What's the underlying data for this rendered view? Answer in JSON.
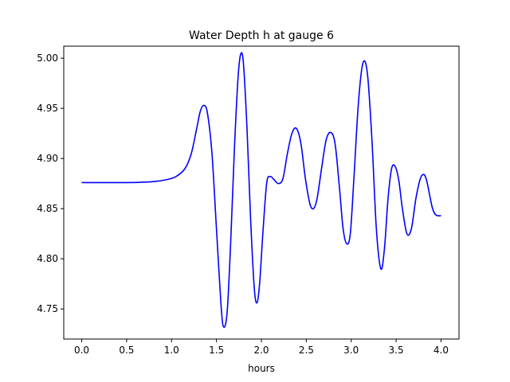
{
  "chart_data": {
    "type": "line",
    "title": "Water Depth h at gauge 6",
    "xlabel": "hours",
    "ylabel": "",
    "xlim": [
      -0.2,
      4.2
    ],
    "ylim": [
      4.72,
      5.012
    ],
    "xticks": [
      0.0,
      0.5,
      1.0,
      1.5,
      2.0,
      2.5,
      3.0,
      3.5,
      4.0
    ],
    "xtick_labels": [
      "0.0",
      "0.5",
      "1.0",
      "1.5",
      "2.0",
      "2.5",
      "3.0",
      "3.5",
      "4.0"
    ],
    "yticks": [
      4.75,
      4.8,
      4.85,
      4.9,
      4.95,
      5.0
    ],
    "ytick_labels": [
      "4.75",
      "4.80",
      "4.85",
      "4.90",
      "4.95",
      "5.00"
    ],
    "grid": false,
    "series": [
      {
        "color": "#0000ff",
        "x": [
          0.0,
          0.5,
          0.8,
          0.95,
          1.05,
          1.15,
          1.22,
          1.28,
          1.32,
          1.36,
          1.4,
          1.45,
          1.5,
          1.55,
          1.58,
          1.62,
          1.66,
          1.7,
          1.74,
          1.77,
          1.8,
          1.84,
          1.88,
          1.92,
          1.95,
          1.98,
          2.02,
          2.06,
          2.1,
          2.14,
          2.19,
          2.24,
          2.29,
          2.34,
          2.39,
          2.44,
          2.49,
          2.54,
          2.58,
          2.62,
          2.67,
          2.72,
          2.77,
          2.82,
          2.87,
          2.91,
          2.95,
          2.99,
          3.03,
          3.08,
          3.13,
          3.18,
          3.23,
          3.28,
          3.33,
          3.37,
          3.41,
          3.45,
          3.49,
          3.53,
          3.57,
          3.62,
          3.67,
          3.72,
          3.77,
          3.81,
          3.84,
          3.87,
          3.9,
          3.93,
          3.96,
          4.0
        ],
        "y": [
          4.876,
          4.876,
          4.877,
          4.879,
          4.882,
          4.89,
          4.905,
          4.93,
          4.947,
          4.953,
          4.945,
          4.905,
          4.83,
          4.755,
          4.732,
          4.748,
          4.82,
          4.91,
          4.98,
          5.004,
          4.995,
          4.93,
          4.84,
          4.772,
          4.756,
          4.775,
          4.83,
          4.876,
          4.882,
          4.879,
          4.875,
          4.88,
          4.905,
          4.925,
          4.93,
          4.915,
          4.88,
          4.855,
          4.85,
          4.86,
          4.89,
          4.918,
          4.926,
          4.915,
          4.87,
          4.83,
          4.815,
          4.825,
          4.88,
          4.955,
          4.995,
          4.985,
          4.92,
          4.83,
          4.79,
          4.81,
          4.86,
          4.89,
          4.892,
          4.878,
          4.85,
          4.825,
          4.83,
          4.86,
          4.88,
          4.884,
          4.878,
          4.865,
          4.852,
          4.845,
          4.843,
          4.843
        ]
      }
    ]
  }
}
